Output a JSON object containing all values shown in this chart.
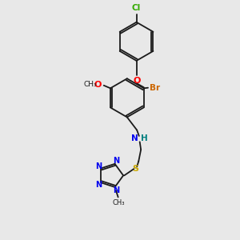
{
  "bg_color": "#e8e8e8",
  "bond_color": "#1a1a1a",
  "cl_color": "#33aa00",
  "br_color": "#cc6600",
  "o_color": "#ff0000",
  "n_color": "#0000ee",
  "s_color": "#ccaa00",
  "h_color": "#008080",
  "canvas_xlim": [
    0,
    10
  ],
  "canvas_ylim": [
    0,
    10
  ]
}
